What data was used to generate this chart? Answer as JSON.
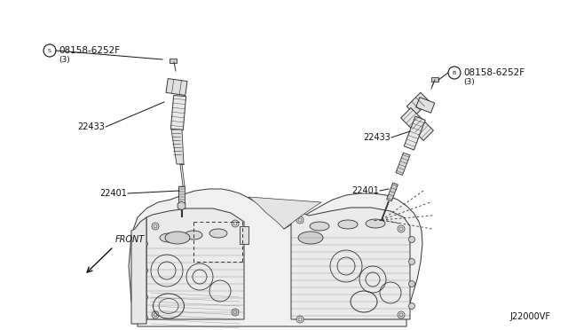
{
  "bg_color": "#ffffff",
  "diagram_code": "J22000VF",
  "line_color": "#333333",
  "text_color": "#111111",
  "label_left_bolt": "08158-6252F",
  "label_left_bolt_qty": "(3)",
  "label_left_coil": "22433",
  "label_left_plug": "22401",
  "label_right_bolt": "08158-6252F",
  "label_right_bolt_qty": "(3)",
  "label_right_coil": "22433",
  "label_right_plug": "22401",
  "front_label": "FRONT",
  "left_circle_letter": "S",
  "right_circle_letter": "B",
  "figsize": [
    6.4,
    3.72
  ],
  "dpi": 100,
  "xlim": [
    0,
    640
  ],
  "ylim": [
    0,
    372
  ]
}
